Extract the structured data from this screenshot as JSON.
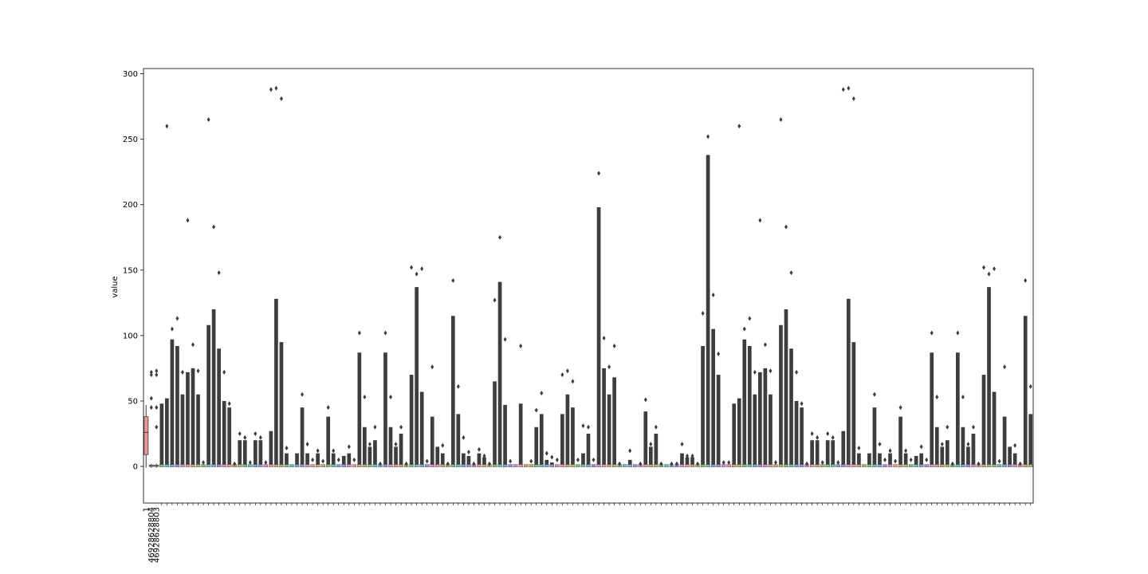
{
  "chart_data": {
    "type": "box",
    "title": "",
    "xlabel": "",
    "ylabel": "value",
    "ylim": [
      -28,
      304
    ],
    "yticks": [
      0,
      50,
      100,
      150,
      200,
      250,
      300
    ],
    "grid": false,
    "legend": "none",
    "box_color": "#e8959b",
    "outlier_color": "#3d3d3d",
    "x_tick_labels": [
      "1",
      "46928628804",
      "46928628803"
    ],
    "series": [
      {
        "category": "1",
        "min": -1,
        "q1": 9,
        "median": 26,
        "q3": 38,
        "max": 47,
        "outliers": []
      },
      {
        "category": "46928628804",
        "min": -1,
        "q1": 0,
        "median": 0,
        "q3": 1,
        "max": 2,
        "outliers": [
          45,
          52,
          70,
          72
        ]
      },
      {
        "category": "46928628803",
        "min": -1,
        "q1": 0,
        "median": 0,
        "q3": 1,
        "max": 2,
        "outliers": [
          30,
          45,
          70,
          73
        ]
      }
    ],
    "dense_columns_profile": [
      [
        48,
        50
      ],
      [
        260,
        52
      ],
      [
        105,
        97
      ],
      [
        113,
        92
      ],
      [
        72,
        55
      ],
      [
        188,
        72
      ],
      [
        93,
        75
      ],
      [
        73,
        55
      ],
      [
        3,
        0
      ],
      [
        265,
        108
      ],
      [
        183,
        120
      ],
      [
        148,
        90
      ],
      [
        72,
        50
      ],
      [
        48,
        45
      ],
      [
        2,
        0
      ],
      [
        25,
        20
      ],
      [
        22,
        20
      ],
      [
        3,
        0
      ],
      [
        25,
        20
      ],
      [
        22,
        20
      ],
      [
        3,
        0
      ],
      [
        288,
        27
      ],
      [
        289,
        128
      ],
      [
        281,
        95
      ],
      [
        14,
        10
      ],
      [
        -7,
        8
      ],
      [
        10,
        15
      ],
      [
        55,
        45
      ],
      [
        17,
        10
      ],
      [
        5,
        0
      ],
      [
        12,
        10
      ],
      [
        4,
        0
      ],
      [
        45,
        38
      ],
      [
        12,
        10
      ],
      [
        5,
        0
      ],
      [
        8,
        10
      ],
      [
        15,
        10
      ],
      [
        5,
        0
      ],
      [
        102,
        87
      ],
      [
        53,
        30
      ],
      [
        17,
        15
      ],
      [
        30,
        20
      ],
      [
        2,
        0
      ],
      [
        102,
        87
      ],
      [
        53,
        30
      ],
      [
        17,
        15
      ],
      [
        30,
        25
      ],
      [
        2,
        0
      ],
      [
        152,
        70
      ],
      [
        147,
        137
      ],
      [
        151,
        57
      ],
      [
        4,
        0
      ],
      [
        76,
        38
      ],
      [
        15,
        15
      ],
      [
        16,
        10
      ],
      [
        2,
        0
      ],
      [
        142,
        115
      ],
      [
        61,
        40
      ],
      [
        22,
        10
      ],
      [
        11,
        8
      ],
      [
        2,
        0
      ],
      [
        13,
        10
      ],
      [
        8,
        7
      ],
      [
        2,
        0
      ],
      [
        127,
        65
      ],
      [
        175,
        141
      ],
      [
        97,
        47
      ],
      [
        4,
        0
      ],
      [
        -9,
        1
      ],
      [
        92,
        48
      ],
      [
        -9,
        2
      ],
      [
        4,
        0
      ],
      [
        43,
        30
      ],
      [
        56,
        40
      ],
      [
        10,
        5
      ],
      [
        7,
        3
      ],
      [
        5,
        0
      ],
      [
        70,
        40
      ],
      [
        73,
        55
      ],
      [
        65,
        45
      ],
      [
        5,
        0
      ],
      [
        31,
        10
      ],
      [
        30,
        25
      ],
      [
        5,
        0
      ],
      [
        224,
        198
      ],
      [
        98,
        75
      ],
      [
        76,
        55
      ],
      [
        92,
        68
      ],
      [
        2,
        0
      ],
      [
        -13,
        5
      ],
      [
        12,
        5
      ],
      [
        -13,
        4
      ],
      [
        2,
        0
      ],
      [
        51,
        42
      ],
      [
        17,
        15
      ],
      [
        30,
        25
      ],
      [
        2,
        0
      ],
      [
        -2,
        3
      ],
      [
        2,
        0
      ],
      [
        2,
        0
      ],
      [
        17,
        10
      ],
      [
        8,
        7
      ],
      [
        8,
        7
      ],
      [
        2,
        0
      ],
      [
        117,
        92
      ],
      [
        252,
        238
      ],
      [
        131,
        105
      ],
      [
        86,
        70
      ],
      [
        3,
        0
      ],
      [
        3,
        0
      ]
    ]
  }
}
